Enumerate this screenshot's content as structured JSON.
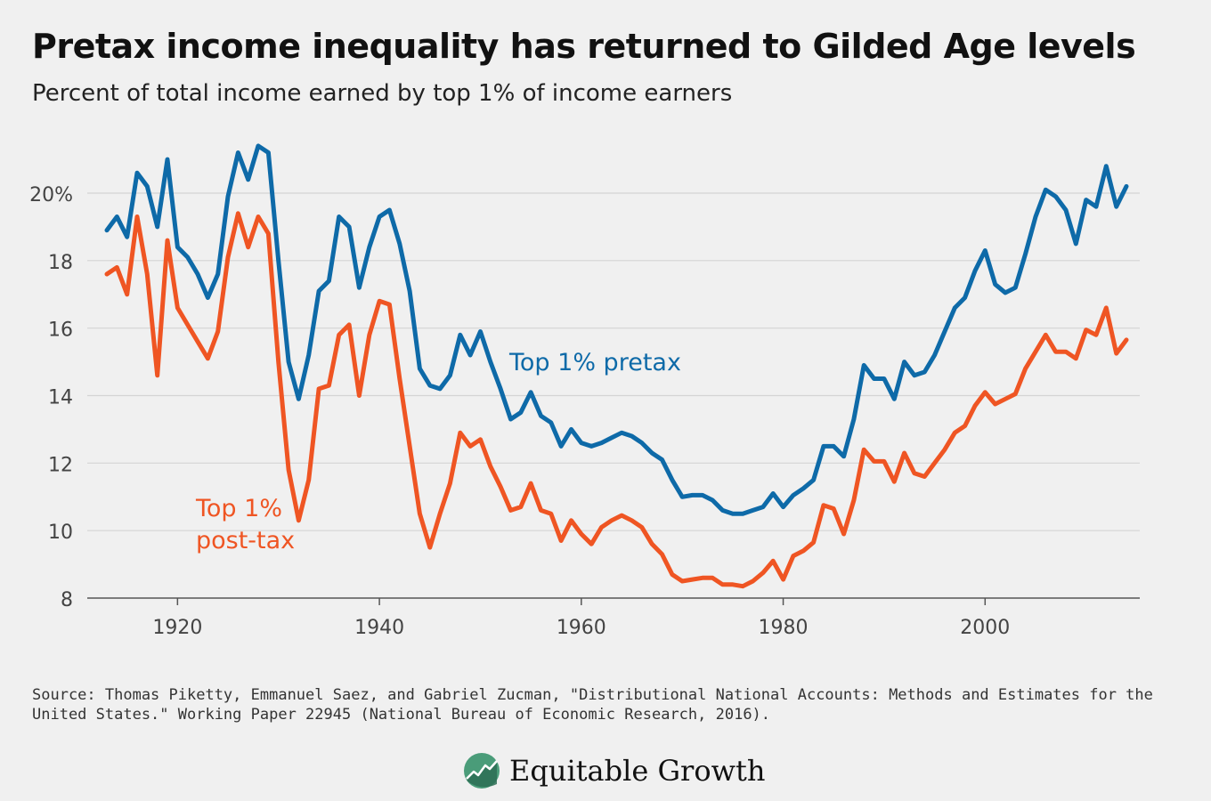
{
  "title": "Pretax income inequality has returned to Gilded Age levels",
  "subtitle": "Percent of total income earned by top 1% of income earners",
  "source": "Source: Thomas Piketty, Emmanuel Saez, and Gabriel Zucman, \"Distributional National Accounts: Methods and Estimates for the United States.\" Working Paper 22945 (National Bureau of Economic Research, 2016).",
  "logo": {
    "text": "Equitable Growth",
    "icon": "rising-line-circle-icon"
  },
  "colors": {
    "pretax": "#0e6aa8",
    "posttax": "#ef5523",
    "grid": "#d4d4d4",
    "background": "#f0f0f0"
  },
  "chart_data": {
    "type": "line",
    "xlabel": "",
    "ylabel": "",
    "ylim": [
      8,
      22
    ],
    "xlim": [
      1913,
      2014
    ],
    "yticks": [
      8,
      10,
      12,
      14,
      16,
      18,
      20
    ],
    "ytick_labels": [
      "8",
      "10",
      "12",
      "14",
      "16",
      "18",
      "20%"
    ],
    "xticks": [
      1920,
      1940,
      1960,
      1980,
      2000
    ],
    "xtick_labels": [
      "1920",
      "1940",
      "1960",
      "1980",
      "2000"
    ],
    "grid": "horizontal",
    "legend": "inline-labels",
    "x": [
      1913,
      1914,
      1915,
      1916,
      1917,
      1918,
      1919,
      1920,
      1921,
      1922,
      1923,
      1924,
      1925,
      1926,
      1927,
      1928,
      1929,
      1930,
      1931,
      1932,
      1933,
      1934,
      1935,
      1936,
      1937,
      1938,
      1939,
      1940,
      1941,
      1942,
      1943,
      1944,
      1945,
      1946,
      1947,
      1948,
      1949,
      1950,
      1951,
      1952,
      1953,
      1954,
      1955,
      1956,
      1957,
      1958,
      1959,
      1960,
      1961,
      1962,
      1963,
      1964,
      1965,
      1966,
      1967,
      1968,
      1969,
      1970,
      1971,
      1972,
      1973,
      1974,
      1975,
      1976,
      1977,
      1978,
      1979,
      1980,
      1981,
      1982,
      1983,
      1984,
      1985,
      1986,
      1987,
      1988,
      1989,
      1990,
      1991,
      1992,
      1993,
      1994,
      1995,
      1996,
      1997,
      1998,
      1999,
      2000,
      2001,
      2002,
      2003,
      2004,
      2005,
      2006,
      2007,
      2008,
      2009,
      2010,
      2011,
      2012,
      2013,
      2014
    ],
    "series": [
      {
        "name": "Top 1% pretax",
        "color": "#0e6aa8",
        "values": [
          18.9,
          19.3,
          18.7,
          20.6,
          20.2,
          19.0,
          21.0,
          18.4,
          18.1,
          17.6,
          16.9,
          17.6,
          19.9,
          21.2,
          20.4,
          21.4,
          21.2,
          18.0,
          15.0,
          13.9,
          15.2,
          17.1,
          17.4,
          19.3,
          19.0,
          17.2,
          18.4,
          19.3,
          19.5,
          18.5,
          17.1,
          14.8,
          14.3,
          14.2,
          14.6,
          15.8,
          15.2,
          15.9,
          15.0,
          14.2,
          13.3,
          13.5,
          14.1,
          13.4,
          13.2,
          12.5,
          13.0,
          12.6,
          12.5,
          12.6,
          12.75,
          12.9,
          12.8,
          12.6,
          12.3,
          12.1,
          11.5,
          11.0,
          11.05,
          11.05,
          10.9,
          10.6,
          10.5,
          10.5,
          10.6,
          10.7,
          11.1,
          10.7,
          11.05,
          11.25,
          11.5,
          12.5,
          12.5,
          12.2,
          13.3,
          14.9,
          14.5,
          14.5,
          13.9,
          15.0,
          14.6,
          14.7,
          15.2,
          15.9,
          16.6,
          16.9,
          17.7,
          18.3,
          17.3,
          17.05,
          17.2,
          18.2,
          19.3,
          20.1,
          19.9,
          19.5,
          18.5,
          19.8,
          19.6,
          20.8,
          19.6,
          20.2
        ]
      },
      {
        "name": "Top 1% post-tax",
        "color": "#ef5523",
        "values": [
          17.6,
          17.8,
          17.0,
          19.3,
          17.6,
          14.6,
          18.6,
          16.6,
          16.1,
          15.6,
          15.1,
          15.9,
          18.1,
          19.4,
          18.4,
          19.3,
          18.8,
          15.0,
          11.8,
          10.3,
          11.5,
          14.2,
          14.3,
          15.8,
          16.1,
          14.0,
          15.8,
          16.8,
          16.7,
          14.5,
          12.5,
          10.5,
          9.5,
          10.5,
          11.4,
          12.9,
          12.5,
          12.7,
          11.9,
          11.3,
          10.6,
          10.7,
          11.4,
          10.6,
          10.5,
          9.7,
          10.3,
          9.9,
          9.6,
          10.1,
          10.3,
          10.45,
          10.3,
          10.1,
          9.6,
          9.3,
          8.7,
          8.5,
          8.55,
          8.6,
          8.6,
          8.4,
          8.4,
          8.35,
          8.5,
          8.75,
          9.1,
          8.55,
          9.25,
          9.4,
          9.65,
          10.75,
          10.65,
          9.9,
          10.9,
          12.4,
          12.05,
          12.05,
          11.45,
          12.3,
          11.7,
          11.6,
          12.0,
          12.4,
          12.9,
          13.1,
          13.7,
          14.1,
          13.75,
          13.9,
          14.05,
          14.8,
          15.3,
          15.8,
          15.3,
          15.3,
          15.1,
          15.95,
          15.8,
          16.6,
          15.25,
          15.65
        ]
      }
    ],
    "annotations": [
      {
        "series": "Top 1% pretax",
        "text": "Top 1% pretax"
      },
      {
        "series": "Top 1% post-tax",
        "text": [
          "Top 1%",
          "post-tax"
        ]
      }
    ]
  }
}
